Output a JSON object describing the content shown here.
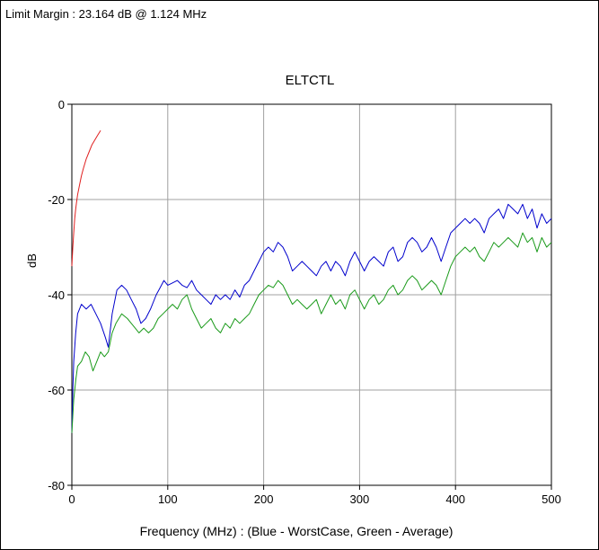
{
  "header": {
    "limit_margin": "Limit Margin : 23.164 dB @ 1.124 MHz"
  },
  "chart_data": {
    "type": "line",
    "title": "ELTCTL",
    "xlabel": "Frequency (MHz) : (Blue - WorstCase, Green - Average)",
    "ylabel": "dB",
    "xlim": [
      0,
      500
    ],
    "ylim": [
      -80,
      0
    ],
    "x_ticks": [
      "0",
      "100",
      "200",
      "300",
      "400",
      "500"
    ],
    "y_ticks": [
      "0",
      "-20",
      "-40",
      "-60",
      "-80"
    ],
    "grid": true,
    "series": [
      {
        "color": "#0000cc",
        "points": [
          [
            0,
            -69
          ],
          [
            1,
            -60
          ],
          [
            2,
            -54
          ],
          [
            4,
            -48
          ],
          [
            6,
            -44
          ],
          [
            10,
            -42
          ],
          [
            15,
            -43
          ],
          [
            20,
            -42
          ],
          [
            25,
            -44
          ],
          [
            30,
            -46
          ],
          [
            35,
            -49
          ],
          [
            38,
            -51
          ],
          [
            42,
            -44
          ],
          [
            47,
            -39
          ],
          [
            52,
            -38
          ],
          [
            57,
            -39
          ],
          [
            62,
            -41
          ],
          [
            67,
            -43
          ],
          [
            72,
            -46
          ],
          [
            77,
            -45
          ],
          [
            82,
            -43
          ],
          [
            88,
            -40
          ],
          [
            92,
            -38.5
          ],
          [
            96,
            -37
          ],
          [
            100,
            -38
          ],
          [
            105,
            -37.5
          ],
          [
            110,
            -37
          ],
          [
            115,
            -38
          ],
          [
            120,
            -38.5
          ],
          [
            125,
            -37
          ],
          [
            130,
            -39
          ],
          [
            135,
            -40
          ],
          [
            140,
            -41
          ],
          [
            145,
            -42
          ],
          [
            150,
            -40
          ],
          [
            155,
            -41
          ],
          [
            160,
            -40
          ],
          [
            165,
            -41
          ],
          [
            170,
            -39
          ],
          [
            175,
            -40.5
          ],
          [
            180,
            -38
          ],
          [
            185,
            -37
          ],
          [
            190,
            -35
          ],
          [
            195,
            -33
          ],
          [
            200,
            -31
          ],
          [
            205,
            -30
          ],
          [
            210,
            -31
          ],
          [
            215,
            -29
          ],
          [
            220,
            -30
          ],
          [
            225,
            -32
          ],
          [
            230,
            -35
          ],
          [
            235,
            -34
          ],
          [
            240,
            -33
          ],
          [
            245,
            -34
          ],
          [
            250,
            -35
          ],
          [
            255,
            -36
          ],
          [
            260,
            -34
          ],
          [
            265,
            -33
          ],
          [
            270,
            -35
          ],
          [
            275,
            -33
          ],
          [
            280,
            -34
          ],
          [
            285,
            -36
          ],
          [
            290,
            -33
          ],
          [
            295,
            -31
          ],
          [
            300,
            -33
          ],
          [
            305,
            -35
          ],
          [
            310,
            -33
          ],
          [
            315,
            -32
          ],
          [
            320,
            -33
          ],
          [
            325,
            -34
          ],
          [
            330,
            -31
          ],
          [
            335,
            -30
          ],
          [
            340,
            -33
          ],
          [
            345,
            -32
          ],
          [
            350,
            -29
          ],
          [
            355,
            -28
          ],
          [
            360,
            -29
          ],
          [
            365,
            -31
          ],
          [
            370,
            -30
          ],
          [
            375,
            -28
          ],
          [
            380,
            -30
          ],
          [
            385,
            -33
          ],
          [
            390,
            -30
          ],
          [
            395,
            -27
          ],
          [
            400,
            -26
          ],
          [
            405,
            -25
          ],
          [
            410,
            -24
          ],
          [
            415,
            -25
          ],
          [
            420,
            -24
          ],
          [
            425,
            -25
          ],
          [
            430,
            -27
          ],
          [
            435,
            -24
          ],
          [
            440,
            -23
          ],
          [
            445,
            -22
          ],
          [
            450,
            -24
          ],
          [
            455,
            -21
          ],
          [
            460,
            -22
          ],
          [
            465,
            -23
          ],
          [
            470,
            -21
          ],
          [
            475,
            -24
          ],
          [
            480,
            -22
          ],
          [
            485,
            -26
          ],
          [
            490,
            -23
          ],
          [
            495,
            -25
          ],
          [
            500,
            -24
          ]
        ]
      },
      {
        "color": "#1a9a1a",
        "points": [
          [
            0,
            -69
          ],
          [
            2,
            -62
          ],
          [
            4,
            -58
          ],
          [
            6,
            -55
          ],
          [
            10,
            -54
          ],
          [
            14,
            -52
          ],
          [
            18,
            -53
          ],
          [
            22,
            -56
          ],
          [
            26,
            -54
          ],
          [
            30,
            -52
          ],
          [
            34,
            -53
          ],
          [
            38,
            -52
          ],
          [
            42,
            -48
          ],
          [
            46,
            -46
          ],
          [
            52,
            -44
          ],
          [
            58,
            -45
          ],
          [
            62,
            -46
          ],
          [
            66,
            -47
          ],
          [
            70,
            -48
          ],
          [
            75,
            -47
          ],
          [
            80,
            -48
          ],
          [
            85,
            -47
          ],
          [
            90,
            -45
          ],
          [
            95,
            -44
          ],
          [
            100,
            -43
          ],
          [
            105,
            -42
          ],
          [
            110,
            -43
          ],
          [
            115,
            -41
          ],
          [
            120,
            -40
          ],
          [
            125,
            -43
          ],
          [
            130,
            -45
          ],
          [
            135,
            -47
          ],
          [
            140,
            -46
          ],
          [
            145,
            -45
          ],
          [
            150,
            -47
          ],
          [
            155,
            -48
          ],
          [
            160,
            -46
          ],
          [
            165,
            -47
          ],
          [
            170,
            -45
          ],
          [
            175,
            -46
          ],
          [
            180,
            -45
          ],
          [
            185,
            -44
          ],
          [
            190,
            -42
          ],
          [
            195,
            -40
          ],
          [
            200,
            -39
          ],
          [
            205,
            -38
          ],
          [
            210,
            -38.5
          ],
          [
            215,
            -37
          ],
          [
            220,
            -38
          ],
          [
            225,
            -40
          ],
          [
            230,
            -42
          ],
          [
            235,
            -41
          ],
          [
            240,
            -42
          ],
          [
            245,
            -43
          ],
          [
            250,
            -42
          ],
          [
            255,
            -41
          ],
          [
            260,
            -44
          ],
          [
            265,
            -42
          ],
          [
            270,
            -40
          ],
          [
            275,
            -42
          ],
          [
            280,
            -41
          ],
          [
            285,
            -43
          ],
          [
            290,
            -40
          ],
          [
            295,
            -39
          ],
          [
            300,
            -41
          ],
          [
            305,
            -43
          ],
          [
            310,
            -41
          ],
          [
            315,
            -40
          ],
          [
            320,
            -42
          ],
          [
            325,
            -41
          ],
          [
            330,
            -39
          ],
          [
            335,
            -38
          ],
          [
            340,
            -40
          ],
          [
            345,
            -39
          ],
          [
            350,
            -37
          ],
          [
            355,
            -36
          ],
          [
            360,
            -37
          ],
          [
            365,
            -39
          ],
          [
            370,
            -38
          ],
          [
            375,
            -37
          ],
          [
            380,
            -38
          ],
          [
            385,
            -40
          ],
          [
            390,
            -37
          ],
          [
            395,
            -34
          ],
          [
            400,
            -32
          ],
          [
            405,
            -31
          ],
          [
            410,
            -30
          ],
          [
            415,
            -31
          ],
          [
            420,
            -30
          ],
          [
            425,
            -32
          ],
          [
            430,
            -33
          ],
          [
            435,
            -31
          ],
          [
            440,
            -29
          ],
          [
            445,
            -30
          ],
          [
            450,
            -29
          ],
          [
            455,
            -28
          ],
          [
            460,
            -29
          ],
          [
            465,
            -30
          ],
          [
            470,
            -27
          ],
          [
            475,
            -29
          ],
          [
            480,
            -28
          ],
          [
            485,
            -31
          ],
          [
            490,
            -28
          ],
          [
            495,
            -30
          ],
          [
            500,
            -29
          ]
        ]
      },
      {
        "color": "#e02020",
        "points": [
          [
            0,
            -34
          ],
          [
            1,
            -30
          ],
          [
            2,
            -27
          ],
          [
            3,
            -24
          ],
          [
            4,
            -22
          ],
          [
            5,
            -20.5
          ],
          [
            6,
            -19
          ],
          [
            8,
            -17
          ],
          [
            10,
            -15
          ],
          [
            12,
            -13.5
          ],
          [
            15,
            -11.5
          ],
          [
            18,
            -10
          ],
          [
            21,
            -8.5
          ],
          [
            24,
            -7.5
          ],
          [
            27,
            -6.5
          ],
          [
            30,
            -5.5
          ]
        ]
      }
    ]
  }
}
